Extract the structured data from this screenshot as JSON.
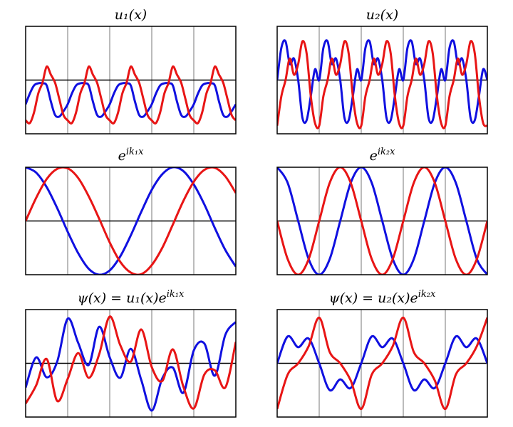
{
  "chart_data": [
    {
      "type": "line",
      "title": "u₁(x)",
      "x": [
        0,
        0.1,
        0.2,
        0.3,
        0.4,
        0.5,
        0.6,
        0.7,
        0.8,
        0.9,
        1,
        1.1,
        1.2,
        1.3,
        1.4,
        1.5,
        1.6,
        1.7,
        1.8,
        1.9,
        2,
        2.1,
        2.2,
        2.3,
        2.4,
        2.5,
        2.6,
        2.7,
        2.8,
        2.9,
        3,
        3.1,
        3.2,
        3.3,
        3.4,
        3.5,
        3.6,
        3.7,
        3.8,
        3.9,
        4,
        4.1,
        4.2,
        4.3,
        4.4,
        4.5,
        4.6,
        4.7,
        4.8,
        4.9,
        5
      ],
      "series": [
        {
          "color": "#1010e0",
          "values": [
            -0.45,
            -0.25,
            -0.1,
            -0.06,
            -0.06,
            -0.1,
            -0.4,
            -0.65,
            -0.68,
            -0.58,
            -0.45,
            -0.25,
            -0.1,
            -0.06,
            -0.06,
            -0.1,
            -0.4,
            -0.65,
            -0.68,
            -0.58,
            -0.45,
            -0.25,
            -0.1,
            -0.06,
            -0.06,
            -0.1,
            -0.4,
            -0.65,
            -0.68,
            -0.58,
            -0.45,
            -0.25,
            -0.1,
            -0.06,
            -0.06,
            -0.1,
            -0.4,
            -0.65,
            -0.68,
            -0.58,
            -0.45,
            -0.25,
            -0.1,
            -0.06,
            -0.06,
            -0.1,
            -0.4,
            -0.65,
            -0.68,
            -0.58,
            -0.45
          ]
        },
        {
          "color": "#e81515",
          "values": [
            -0.75,
            -0.8,
            -0.6,
            -0.25,
            -0.05,
            0.25,
            0.1,
            -0.05,
            -0.35,
            -0.65,
            -0.75,
            -0.8,
            -0.6,
            -0.25,
            -0.05,
            0.25,
            0.1,
            -0.05,
            -0.35,
            -0.65,
            -0.75,
            -0.8,
            -0.6,
            -0.25,
            -0.05,
            0.25,
            0.1,
            -0.05,
            -0.35,
            -0.65,
            -0.75,
            -0.8,
            -0.6,
            -0.25,
            -0.05,
            0.25,
            0.1,
            -0.05,
            -0.35,
            -0.65,
            -0.75,
            -0.8,
            -0.6,
            -0.25,
            -0.05,
            0.25,
            0.1,
            -0.05,
            -0.35,
            -0.65,
            -0.75
          ]
        }
      ],
      "xlim": [
        0,
        5
      ],
      "ylim": [
        -1,
        1
      ],
      "xticks": [
        1,
        2,
        3,
        4
      ],
      "yticks": [
        0
      ],
      "grid": true
    },
    {
      "type": "line",
      "title": "u₂(x)",
      "x": [
        0,
        0.1,
        0.2,
        0.3,
        0.4,
        0.5,
        0.6,
        0.7,
        0.8,
        0.9,
        1,
        1.1,
        1.2,
        1.3,
        1.4,
        1.5,
        1.6,
        1.7,
        1.8,
        1.9,
        2,
        2.1,
        2.2,
        2.3,
        2.4,
        2.5,
        2.6,
        2.7,
        2.8,
        2.9,
        3,
        3.1,
        3.2,
        3.3,
        3.4,
        3.5,
        3.6,
        3.7,
        3.8,
        3.9,
        4,
        4.1,
        4.2,
        4.3,
        4.4,
        4.5,
        4.6,
        4.7,
        4.8,
        4.9,
        5
      ],
      "series": [
        {
          "color": "#1010e0",
          "values": [
            0.0,
            0.6,
            0.72,
            0.3,
            0.4,
            0.0,
            -0.7,
            -0.75,
            -0.3,
            0.2,
            0.0,
            0.6,
            0.72,
            0.3,
            0.4,
            0.0,
            -0.7,
            -0.75,
            -0.3,
            0.2,
            0.0,
            0.6,
            0.72,
            0.3,
            0.4,
            0.0,
            -0.7,
            -0.75,
            -0.3,
            0.2,
            0.0,
            0.6,
            0.72,
            0.3,
            0.4,
            0.0,
            -0.7,
            -0.75,
            -0.3,
            0.2,
            0.0,
            0.6,
            0.72,
            0.3,
            0.4,
            0.0,
            -0.7,
            -0.75,
            -0.3,
            0.2,
            0.0
          ]
        },
        {
          "color": "#e81515",
          "values": [
            -0.85,
            -0.3,
            0.0,
            0.4,
            0.1,
            0.3,
            0.72,
            0.5,
            -0.3,
            -0.8,
            -0.85,
            -0.3,
            0.0,
            0.4,
            0.1,
            0.3,
            0.72,
            0.5,
            -0.3,
            -0.8,
            -0.85,
            -0.3,
            0.0,
            0.4,
            0.1,
            0.3,
            0.72,
            0.5,
            -0.3,
            -0.8,
            -0.85,
            -0.3,
            0.0,
            0.4,
            0.1,
            0.3,
            0.72,
            0.5,
            -0.3,
            -0.8,
            -0.85,
            -0.3,
            0.0,
            0.4,
            0.1,
            0.3,
            0.72,
            0.5,
            -0.3,
            -0.8,
            -0.85
          ]
        }
      ],
      "xlim": [
        0,
        5
      ],
      "ylim": [
        -1,
        1
      ],
      "xticks": [
        1,
        2,
        3,
        4
      ],
      "yticks": [
        0
      ],
      "grid": true
    },
    {
      "type": "line",
      "title": "e",
      "title_sup": "ik₁x",
      "x": [
        0,
        0.25,
        0.5,
        0.75,
        1,
        1.25,
        1.5,
        1.75,
        2,
        2.25,
        2.5,
        2.75,
        3,
        3.25,
        3.5,
        3.75,
        4,
        4.25,
        4.5,
        4.75,
        5
      ],
      "series": [
        {
          "color": "#1010e0",
          "values": [
            1,
            0.9,
            0.63,
            0.24,
            -0.2,
            -0.6,
            -0.89,
            -1.0,
            -0.92,
            -0.66,
            -0.27,
            0.17,
            0.58,
            0.87,
            1.0,
            0.93,
            0.68,
            0.31,
            -0.13,
            -0.54,
            -0.85
          ]
        },
        {
          "color": "#e81515",
          "values": [
            0,
            0.43,
            0.78,
            0.97,
            0.98,
            0.8,
            0.46,
            0.04,
            -0.4,
            -0.76,
            -0.96,
            -0.99,
            -0.82,
            -0.5,
            -0.07,
            0.37,
            0.73,
            0.95,
            0.99,
            0.83,
            0.52
          ]
        }
      ],
      "xlim": [
        0,
        5
      ],
      "ylim": [
        -1,
        1
      ],
      "xticks": [
        1,
        2,
        3,
        4
      ],
      "yticks": [
        0
      ],
      "grid": true
    },
    {
      "type": "line",
      "title": "e",
      "title_sup": "ik₂x",
      "x": [
        0,
        0.25,
        0.5,
        0.75,
        1,
        1.25,
        1.5,
        1.75,
        2,
        2.25,
        2.5,
        2.75,
        3,
        3.25,
        3.5,
        3.75,
        4,
        4.25,
        4.5,
        4.75,
        5
      ],
      "series": [
        {
          "color": "#1010e0",
          "values": [
            1,
            0.71,
            0,
            -0.71,
            -1,
            -0.71,
            0,
            0.71,
            1,
            0.71,
            0,
            -0.71,
            -1,
            -0.71,
            0,
            0.71,
            1,
            0.71,
            0,
            -0.71,
            -1
          ]
        },
        {
          "color": "#e81515",
          "values": [
            0,
            -0.71,
            -1,
            -0.71,
            0,
            0.71,
            1,
            0.71,
            0,
            -0.71,
            -1,
            -0.71,
            0,
            0.71,
            1,
            0.71,
            0,
            -0.71,
            -1,
            -0.71,
            0
          ]
        }
      ],
      "xlim": [
        0,
        5
      ],
      "ylim": [
        -1,
        1
      ],
      "xticks": [
        1,
        2,
        3,
        4
      ],
      "yticks": [
        0
      ],
      "grid": true
    },
    {
      "type": "line",
      "title": "ψ(x) = u₁(x)e",
      "title_sup": "ik₁x",
      "x": [
        0,
        0.25,
        0.5,
        0.75,
        1,
        1.25,
        1.5,
        1.75,
        2,
        2.25,
        2.5,
        2.75,
        3,
        3.25,
        3.5,
        3.75,
        4,
        4.25,
        4.5,
        4.75,
        5
      ],
      "series": [
        {
          "color": "#1010e0",
          "values": [
            -0.45,
            0.11,
            -0.26,
            0.03,
            0.83,
            0.38,
            -0.03,
            0.68,
            0.11,
            -0.27,
            0.27,
            -0.31,
            -0.88,
            -0.28,
            -0.08,
            -0.55,
            0.24,
            0.37,
            -0.23,
            0.53,
            0.77
          ]
        },
        {
          "color": "#e81515",
          "values": [
            -0.75,
            -0.41,
            0.08,
            -0.7,
            -0.29,
            0.19,
            -0.27,
            0.17,
            0.87,
            0.34,
            0.03,
            0.63,
            -0.07,
            -0.33,
            0.26,
            -0.43,
            -0.84,
            -0.21,
            -0.13,
            -0.45,
            0.4
          ]
        }
      ],
      "xlim": [
        0,
        5
      ],
      "ylim": [
        -1,
        1
      ],
      "xticks": [
        1,
        2,
        3,
        4
      ],
      "yticks": [
        0
      ],
      "grid": true
    },
    {
      "type": "line",
      "title": "ψ(x) = u₂(x)e",
      "title_sup": "ik₂x",
      "x": [
        0,
        0.25,
        0.5,
        0.75,
        1,
        1.25,
        1.5,
        1.75,
        2,
        2.25,
        2.5,
        2.75,
        3,
        3.25,
        3.5,
        3.75,
        4,
        4.25,
        4.5,
        4.75,
        5
      ],
      "series": [
        {
          "color": "#1010e0",
          "values": [
            0,
            0.5,
            0.3,
            0.46,
            0,
            -0.5,
            -0.3,
            -0.46,
            0,
            0.5,
            0.3,
            0.46,
            0,
            -0.5,
            -0.3,
            -0.46,
            0,
            0.5,
            0.3,
            0.46,
            0
          ]
        },
        {
          "color": "#e81515",
          "values": [
            -0.85,
            -0.21,
            0,
            0.32,
            0.85,
            0.21,
            0,
            -0.32,
            -0.85,
            -0.21,
            0,
            0.32,
            0.85,
            0.21,
            0,
            -0.32,
            -0.85,
            -0.21,
            0,
            0.32,
            0.85
          ]
        }
      ],
      "xlim": [
        0,
        5
      ],
      "ylim": [
        -1,
        1
      ],
      "xticks": [
        1,
        2,
        3,
        4
      ],
      "yticks": [
        0
      ],
      "grid": true
    }
  ]
}
